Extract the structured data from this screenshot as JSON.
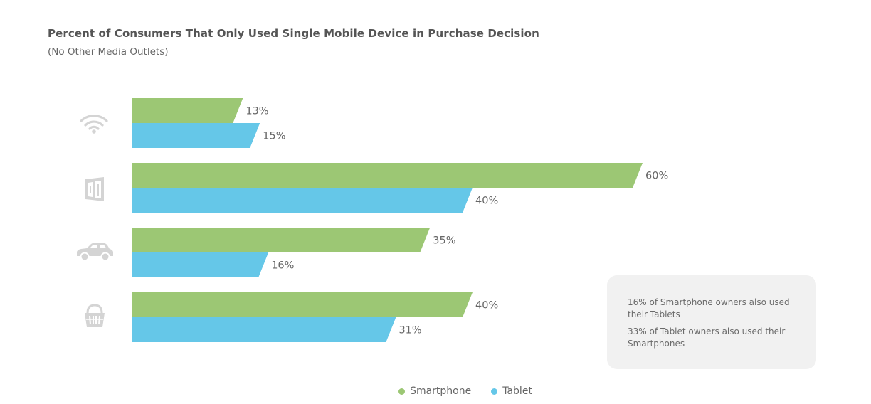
{
  "title": "Percent of Consumers That Only Used Single Mobile Device in Purchase Decision",
  "subtitle": "(No Other Media Outlets)",
  "colors": {
    "smartphone": "#9cc774",
    "tablet": "#65c7e8",
    "icon": "#d4d4d4"
  },
  "icons": [
    "wifi-icon",
    "storefront-icon",
    "car-icon",
    "shopping-basket-icon"
  ],
  "notes": [
    "16% of Smartphone owners also used their Tablets",
    "33% of Tablet owners also used their Smartphones"
  ],
  "legend": {
    "smartphone": "Smartphone",
    "tablet": "Tablet"
  },
  "chart_data": {
    "type": "bar",
    "orientation": "horizontal",
    "title": "Percent of Consumers That Only Used Single Mobile Device in Purchase Decision",
    "subtitle": "(No Other Media Outlets)",
    "categories": [
      "",
      "",
      "",
      ""
    ],
    "series": [
      {
        "name": "Smartphone",
        "values": [
          13,
          60,
          35,
          40
        ],
        "labels": [
          "13%",
          "60%",
          "35%",
          "40%"
        ]
      },
      {
        "name": "Tablet",
        "values": [
          15,
          40,
          16,
          31
        ],
        "labels": [
          "15%",
          "40%",
          "16%",
          "31%"
        ]
      }
    ],
    "xlim": [
      0,
      100
    ],
    "grid": false,
    "legend_position": "bottom"
  }
}
